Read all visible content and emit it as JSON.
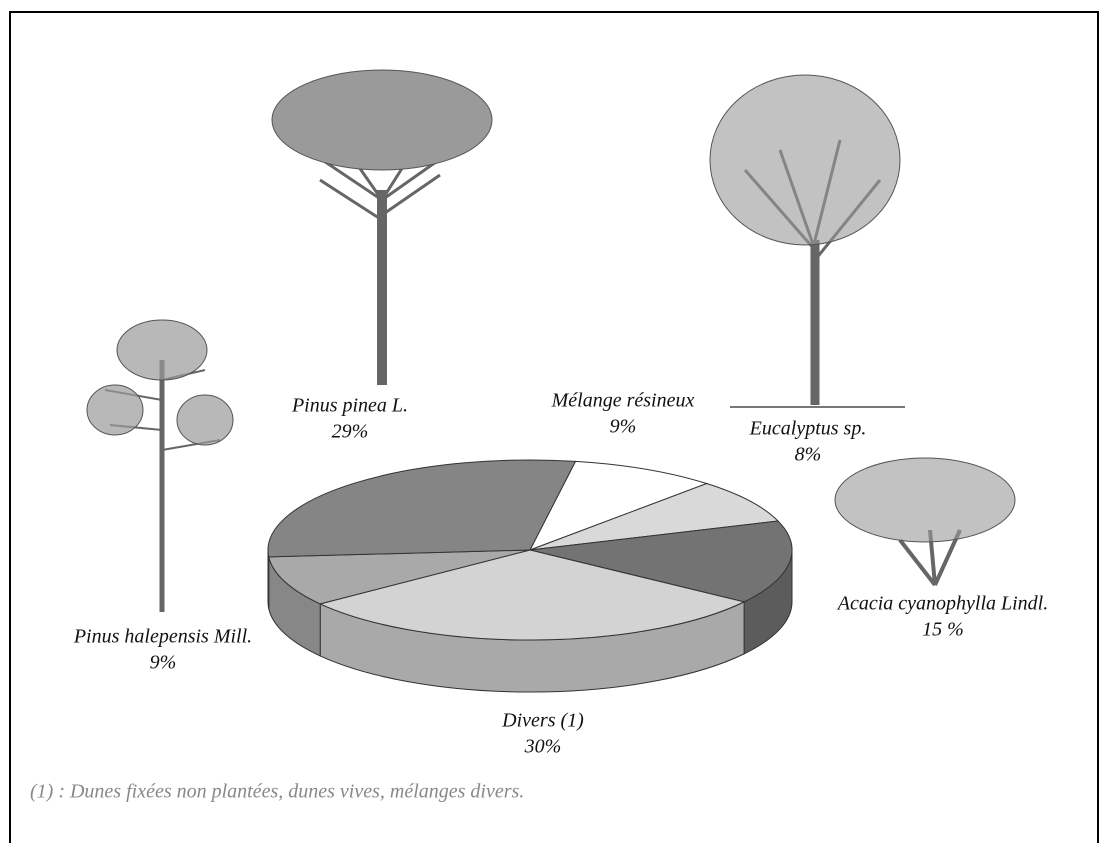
{
  "chart_data": {
    "type": "pie3d",
    "categories": [
      "Mélange résineux",
      "Eucalyptus sp.",
      "Acacia cyanophylla Lindl.",
      "Divers (1)",
      "Pinus halepensis Mill.",
      "Pinus pinea L."
    ],
    "values": [
      9,
      8,
      15,
      30,
      9,
      29
    ],
    "value_labels": [
      "9%",
      "8%",
      "15 %",
      "30%",
      "9%",
      "29%"
    ],
    "colors": [
      "#ffffff",
      "#d9d9d9",
      "#737373",
      "#d3d3d3",
      "#a9a9a9",
      "#858585"
    ],
    "footnote": "(1) : Dunes fixées non plantées, dunes vives, mélanges divers."
  }
}
